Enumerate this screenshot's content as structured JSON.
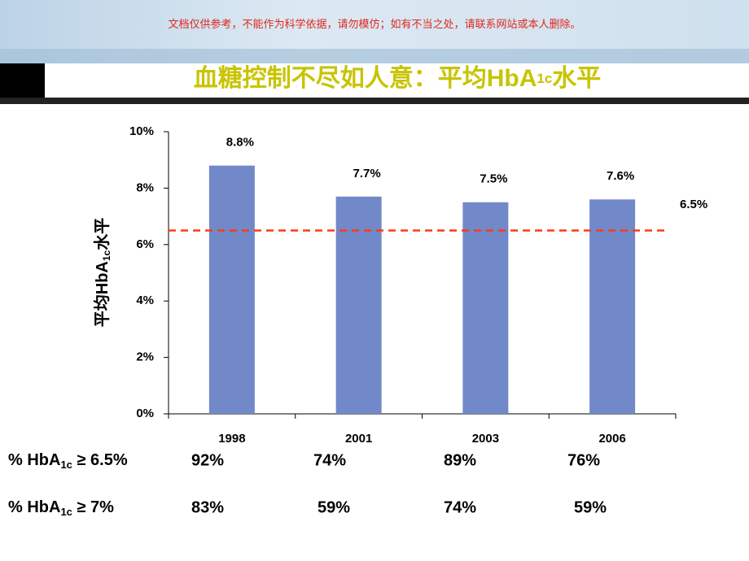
{
  "banner": {
    "notice": "文档仅供参考，不能作为科学依据，请勿模仿；如有不当之处，请联系网站或本人删除。"
  },
  "chart_data": {
    "type": "bar",
    "title": {
      "main": "血糖控制不尽如人意：平均HbA",
      "sub": "1c",
      "end": "水平"
    },
    "y_label": {
      "main": "平均HbA",
      "sub": "1c",
      "end": "水平"
    },
    "categories": [
      "1998",
      "2001",
      "2003",
      "2006"
    ],
    "values": [
      8.8,
      7.7,
      7.5,
      7.6
    ],
    "value_labels": [
      "8.8%",
      "7.7%",
      "7.5%",
      "7.6%"
    ],
    "color": "#7289c9",
    "ylim": [
      0,
      10
    ],
    "yticks": [
      {
        "value": 0,
        "label": "0%"
      },
      {
        "value": 2,
        "label": "2%"
      },
      {
        "value": 4,
        "label": "4%"
      },
      {
        "value": 6,
        "label": "6%"
      },
      {
        "value": 8,
        "label": "8%"
      },
      {
        "value": 10,
        "label": "10%"
      }
    ],
    "reference_line": {
      "value": 6.5,
      "label": "6.5%",
      "color": "#ff3a12"
    }
  },
  "table": {
    "rows": [
      {
        "label": {
          "main": "% HbA",
          "sub": "1c",
          "end": " ≥ 6.5%"
        },
        "cells": [
          "92%",
          "74%",
          "89%",
          "76%"
        ]
      },
      {
        "label": {
          "main": "% HbA",
          "sub": "1c",
          "end": " ≥ 7%"
        },
        "cells": [
          "83%",
          "59%",
          "74%",
          "59%"
        ]
      }
    ]
  }
}
